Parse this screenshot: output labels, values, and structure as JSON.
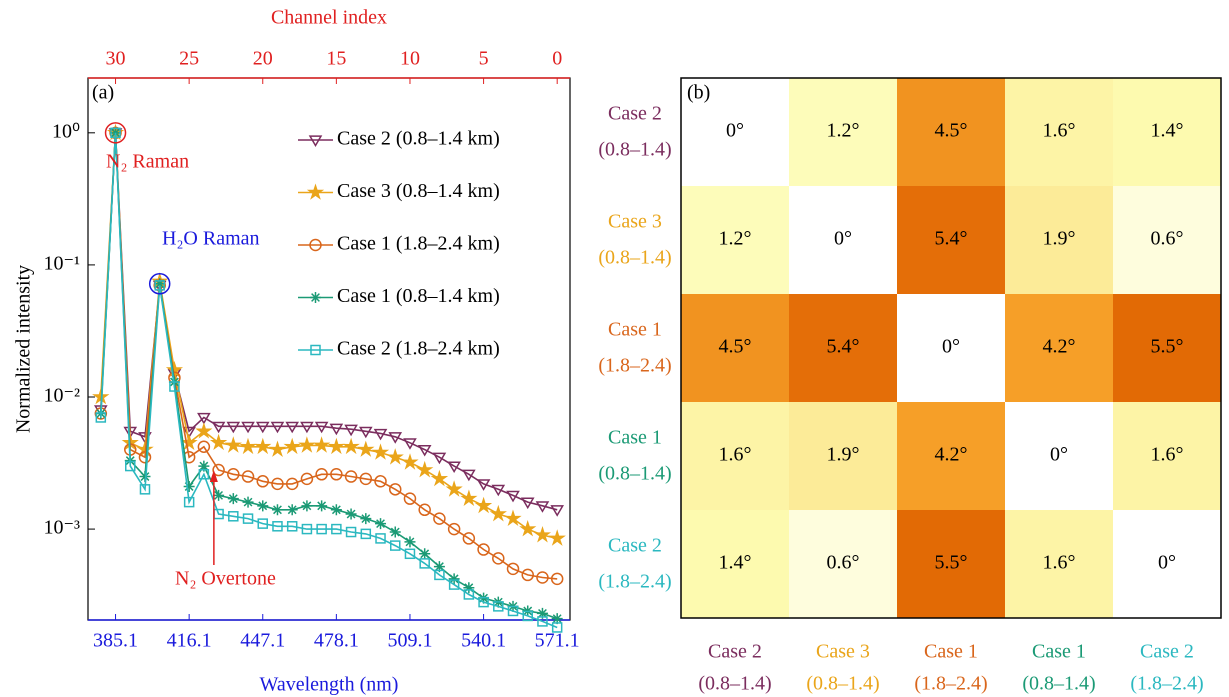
{
  "chart_data": [
    {
      "type": "line",
      "panel_label": "(a)",
      "xlabel": "Wavelength (nm)",
      "xlabel_color": "#1a1adc",
      "ylabel": "Normalized intensity",
      "x2label": "Channel index",
      "x2label_color": "#e02020",
      "xlim": [
        373.5,
        576.5
      ],
      "xticks": [
        385.1,
        416.1,
        447.1,
        478.1,
        509.1,
        540.1,
        571.1
      ],
      "x2lim": [
        31.87,
        -0.87
      ],
      "x2ticks": [
        30,
        25,
        20,
        15,
        10,
        5,
        0
      ],
      "log_y": true,
      "ylim": [
        0.000205,
        2.6
      ],
      "yticks": [
        {
          "value": 1,
          "label": "10⁰"
        },
        {
          "value": 0.1,
          "label": "10⁻¹"
        },
        {
          "value": 0.01,
          "label": "10⁻²"
        },
        {
          "value": 0.001,
          "label": "10⁻³"
        }
      ],
      "x": [
        378.9,
        385.1,
        391.3,
        397.5,
        403.7,
        409.9,
        416.1,
        422.3,
        428.5,
        434.7,
        440.9,
        447.1,
        453.3,
        459.5,
        465.7,
        471.9,
        478.1,
        484.3,
        490.5,
        496.7,
        502.9,
        509.1,
        515.3,
        521.5,
        527.7,
        533.9,
        540.1,
        546.3,
        552.5,
        558.7,
        564.9,
        571.1
      ],
      "legend": "upper right",
      "series": [
        {
          "name": "Case 2 (0.8–1.4 km)",
          "color": "#7b2d5e",
          "marker": "triangle-down",
          "values": [
            0.008,
            1.0,
            0.0055,
            0.005,
            0.07,
            0.015,
            0.0055,
            0.007,
            0.006,
            0.006,
            0.006,
            0.006,
            0.006,
            0.006,
            0.006,
            0.006,
            0.0058,
            0.0057,
            0.0055,
            0.0053,
            0.005,
            0.0045,
            0.004,
            0.0035,
            0.003,
            0.0026,
            0.0022,
            0.002,
            0.0018,
            0.0016,
            0.0015,
            0.0014
          ]
        },
        {
          "name": "Case 3 (0.8–1.4 km)",
          "color": "#eaa51a",
          "marker": "star",
          "values": [
            0.01,
            1.0,
            0.0045,
            0.004,
            0.075,
            0.016,
            0.0045,
            0.0055,
            0.0045,
            0.0043,
            0.0042,
            0.0042,
            0.004,
            0.0042,
            0.0043,
            0.0043,
            0.0042,
            0.0042,
            0.004,
            0.0038,
            0.0035,
            0.0032,
            0.0028,
            0.0024,
            0.002,
            0.0017,
            0.0015,
            0.0013,
            0.0012,
            0.001,
            0.0009,
            0.00085
          ]
        },
        {
          "name": "Case 1 (1.8–2.4 km)",
          "color": "#d9661c",
          "marker": "circle",
          "values": [
            0.0075,
            1.0,
            0.004,
            0.0035,
            0.07,
            0.014,
            0.0035,
            0.0042,
            0.0028,
            0.0026,
            0.0025,
            0.0023,
            0.0022,
            0.0022,
            0.0024,
            0.0026,
            0.0026,
            0.0025,
            0.0024,
            0.0023,
            0.002,
            0.0017,
            0.0014,
            0.0012,
            0.001,
            0.00085,
            0.0007,
            0.0006,
            0.0005,
            0.00045,
            0.00043,
            0.00042
          ]
        },
        {
          "name": "Case 1 (0.8–1.4 km)",
          "color": "#1b9a75",
          "marker": "asterisk",
          "values": [
            0.0075,
            1.0,
            0.0033,
            0.0025,
            0.072,
            0.013,
            0.0021,
            0.003,
            0.0018,
            0.0017,
            0.0016,
            0.0015,
            0.0014,
            0.0014,
            0.0015,
            0.0015,
            0.0014,
            0.0013,
            0.0012,
            0.0011,
            0.00095,
            0.0008,
            0.00065,
            0.00052,
            0.00042,
            0.00036,
            0.0003,
            0.00028,
            0.00026,
            0.00024,
            0.00023,
            0.00021
          ]
        },
        {
          "name": "Case 2 (1.8–2.4 km)",
          "color": "#2bb8c0",
          "marker": "square",
          "values": [
            0.007,
            1.0,
            0.003,
            0.002,
            0.07,
            0.012,
            0.0016,
            0.0026,
            0.0013,
            0.00125,
            0.0012,
            0.0011,
            0.00105,
            0.00105,
            0.001,
            0.001,
            0.001,
            0.00095,
            0.00092,
            0.00085,
            0.00075,
            0.00065,
            0.00055,
            0.00045,
            0.00038,
            0.00032,
            0.00028,
            0.00026,
            0.00024,
            0.00022,
            0.0002,
            0.00018
          ]
        }
      ],
      "annotations": [
        {
          "text": "N₂ Raman",
          "color": "#e02020"
        },
        {
          "text": "H₂O Raman",
          "color": "#1a1adc"
        },
        {
          "text": "N₂ Overtone",
          "color": "#e02020"
        }
      ]
    },
    {
      "type": "heatmap",
      "panel_label": "(b)",
      "categories": [
        [
          "Case 2",
          "(0.8–1.4)"
        ],
        [
          "Case 3",
          "(0.8–1.4)"
        ],
        [
          "Case 1",
          "(1.8–2.4)"
        ],
        [
          "Case 1",
          "(0.8–1.4)"
        ],
        [
          "Case 2",
          "(1.8–2.4)"
        ]
      ],
      "category_colors": [
        "#7b2d5e",
        "#eaa51a",
        "#d9661c",
        "#1b9a75",
        "#2bb8c0"
      ],
      "colormap": [
        "#ffffff",
        "#fdfbb0",
        "#fbd070",
        "#f7a22a",
        "#e26a05"
      ],
      "clim": [
        0,
        5.5
      ],
      "values": [
        [
          0,
          1.2,
          4.5,
          1.6,
          1.4
        ],
        [
          1.2,
          0,
          5.4,
          1.9,
          0.6
        ],
        [
          4.5,
          5.4,
          0,
          4.2,
          5.5
        ],
        [
          1.6,
          1.9,
          4.2,
          0,
          1.6
        ],
        [
          1.4,
          0.6,
          5.5,
          1.6,
          0
        ]
      ],
      "value_labels": [
        [
          "0°",
          "1.2°",
          "4.5°",
          "1.6°",
          "1.4°"
        ],
        [
          "1.2°",
          "0°",
          "5.4°",
          "1.9°",
          "0.6°"
        ],
        [
          "4.5°",
          "5.4°",
          "0°",
          "4.2°",
          "5.5°"
        ],
        [
          "1.6°",
          "1.9°",
          "4.2°",
          "0°",
          "1.6°"
        ],
        [
          "1.4°",
          "0.6°",
          "5.5°",
          "1.6°",
          "0°"
        ]
      ]
    }
  ]
}
